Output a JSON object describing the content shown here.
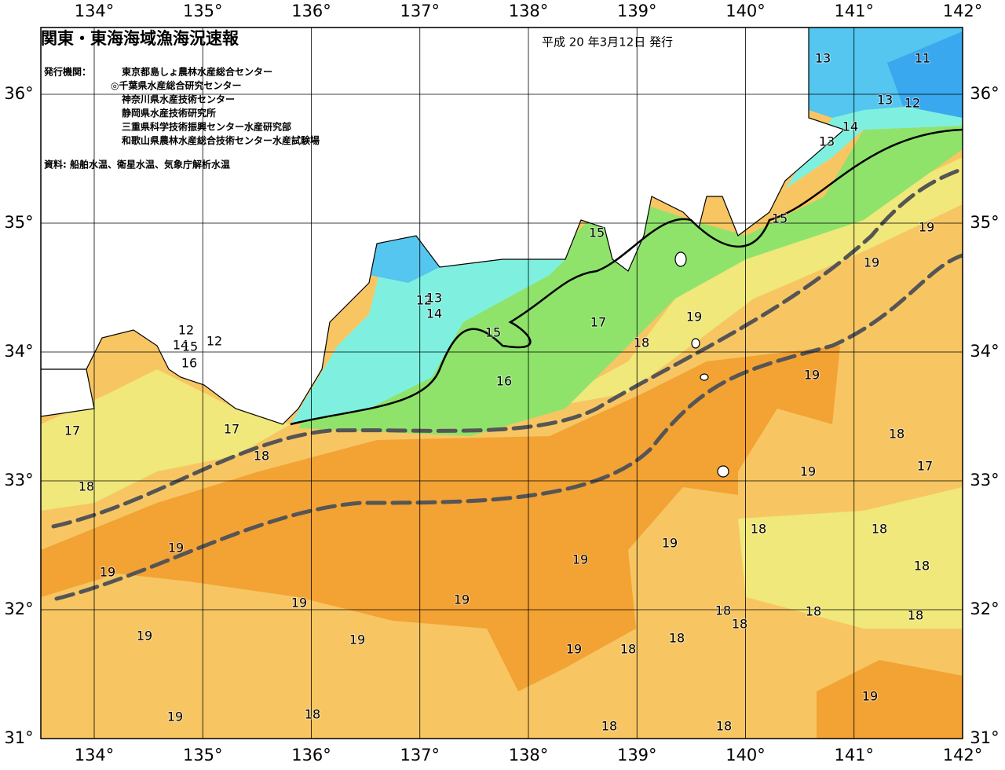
{
  "header": {
    "title": "関東・東海海域漁海況速報",
    "date": "平成 20 年3月12日 発行"
  },
  "issuer": {
    "label": "発行機関：",
    "orgs": [
      "東京都島しょ農林水産総合センター",
      "◎千葉県水産総合研究センター",
      "神奈川県水産技術センター",
      "静岡県水産技術研究所",
      "三重県科学技術振興センター水産研究部",
      "和歌山県農林水産総合技術センター水産試験場"
    ]
  },
  "source": "資料: 船舶水温、衛星水温、気象庁解析水温",
  "lon_labels": [
    "134°",
    "135°",
    "136°",
    "137°",
    "138°",
    "139°",
    "140°",
    "141°",
    "142°"
  ],
  "lat_labels": [
    "36°",
    "35°",
    "34°",
    "33°",
    "32°",
    "31°"
  ],
  "temperature_labels": [
    13,
    11,
    13,
    12,
    14,
    13,
    15,
    19,
    19,
    15,
    12,
    13,
    14,
    17,
    19,
    18,
    15,
    16,
    12,
    12,
    14,
    15,
    16,
    19,
    17,
    17,
    18,
    18,
    17,
    19,
    18,
    18,
    18,
    19,
    19,
    19,
    18,
    19,
    19,
    19,
    18,
    18,
    18,
    18,
    19,
    19,
    19,
    18,
    18,
    19,
    19,
    18,
    18,
    18
  ]
}
